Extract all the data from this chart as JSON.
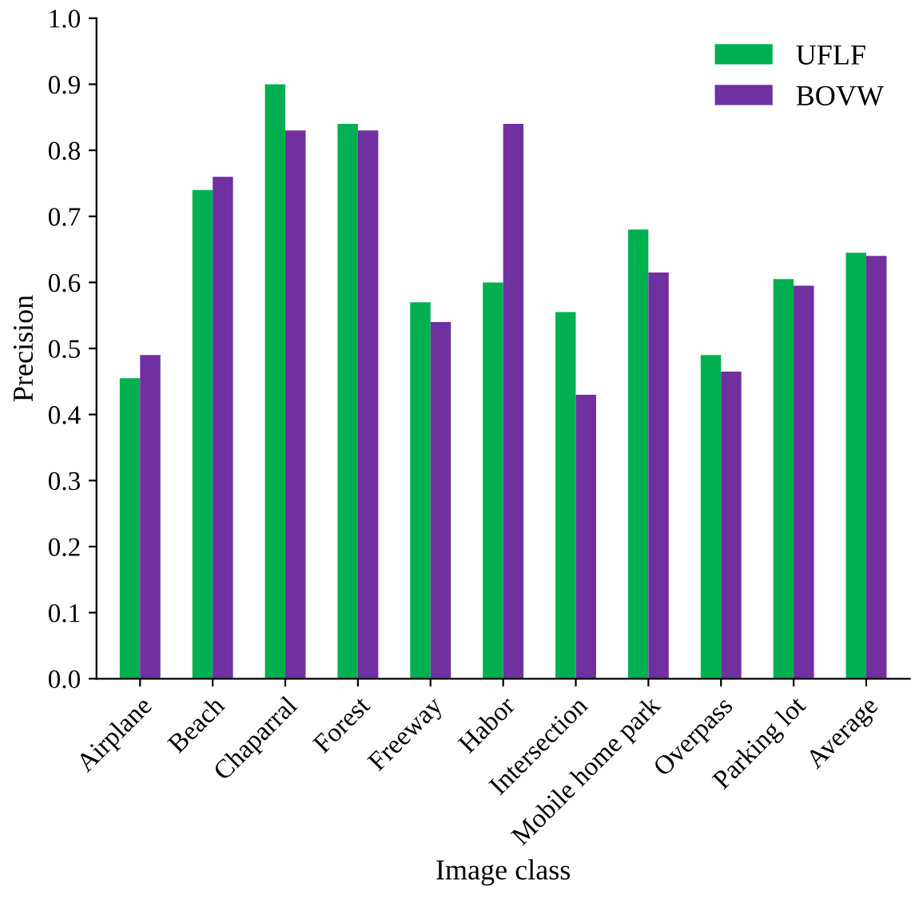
{
  "chart_data": {
    "type": "bar",
    "xlabel": "Image class",
    "ylabel": "Precision",
    "categories": [
      "Airplane",
      "Beach",
      "Chaparral",
      "Forest",
      "Freeway",
      "Habor",
      "Intersection",
      "Mobile home park",
      "Overpass",
      "Parking lot",
      "Average"
    ],
    "series": [
      {
        "name": "UFLF",
        "color": "#00b050",
        "values": [
          0.455,
          0.74,
          0.9,
          0.84,
          0.57,
          0.6,
          0.555,
          0.68,
          0.49,
          0.605,
          0.645
        ]
      },
      {
        "name": "BOVW",
        "color": "#7030a0",
        "values": [
          0.49,
          0.76,
          0.83,
          0.83,
          0.54,
          0.84,
          0.43,
          0.615,
          0.465,
          0.595,
          0.64
        ]
      }
    ],
    "ylim": [
      0,
      1
    ],
    "yticks": [
      {
        "value": 0,
        "label": "0.0"
      },
      {
        "value": 0.1,
        "label": "0.1"
      },
      {
        "value": 0.2,
        "label": "0.2"
      },
      {
        "value": 0.3,
        "label": "0.3"
      },
      {
        "value": 0.4,
        "label": "0.4"
      },
      {
        "value": 0.5,
        "label": "0.5"
      },
      {
        "value": 0.6,
        "label": "0.6"
      },
      {
        "value": 0.7,
        "label": "0.7"
      },
      {
        "value": 0.8,
        "label": "0.8"
      },
      {
        "value": 0.9,
        "label": "0.9"
      },
      {
        "value": 1,
        "label": "1.0"
      }
    ],
    "grid": false,
    "legend": "top right"
  }
}
